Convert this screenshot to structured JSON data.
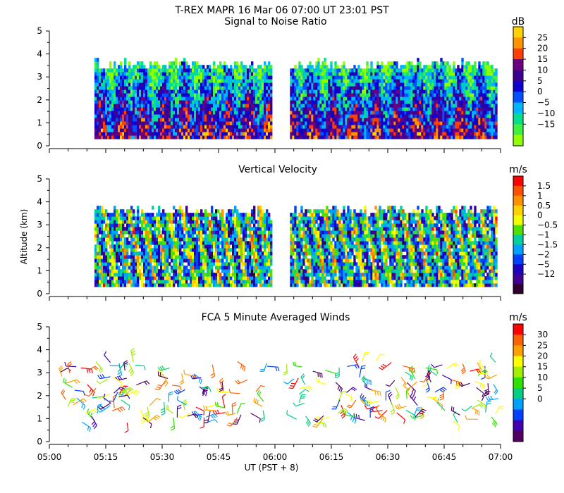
{
  "title": "T-REX   MAPR 16 Mar 06   07:00 UT   23:01   PST",
  "x_axis": {
    "label": "UT  (PST + 8)",
    "ticks": [
      "05:00",
      "05:15",
      "05:30",
      "05:45",
      "06:00",
      "06:15",
      "06:30",
      "06:45",
      "07:00"
    ],
    "range_minutes": [
      0,
      120
    ]
  },
  "chart_data": [
    {
      "type": "heatmap",
      "title": "Signal to Noise Ratio",
      "ylabel": "",
      "ylim": [
        0,
        5
      ],
      "yticks": [
        "0",
        "1",
        "2",
        "3",
        "4",
        "5"
      ],
      "colorbar": {
        "unit": "dB",
        "labels": [
          "25",
          "20",
          "15",
          "10",
          "5",
          "0",
          "−5",
          "−10",
          "−15"
        ],
        "colors": [
          "#ffd200",
          "#ff9400",
          "#ff4000",
          "#6a0080",
          "#3c0090",
          "#1000d0",
          "#0050ff",
          "#00b4ff",
          "#00e090",
          "#40f040",
          "#90ff00"
        ]
      },
      "data_gap_minutes": [
        59,
        64
      ],
      "data_coverage_minutes": [
        [
          12,
          59
        ],
        [
          64,
          119
        ]
      ],
      "data_altitude_km": [
        0.3,
        3.5
      ]
    },
    {
      "type": "heatmap",
      "title": "Vertical Velocity",
      "ylabel": "Altitude (km)",
      "ylim": [
        0,
        5
      ],
      "yticks": [
        "0",
        "1",
        "2",
        "3",
        "4",
        "5"
      ],
      "colorbar": {
        "unit": "m/s",
        "labels": [
          "1.5",
          "1",
          "0.5",
          "0",
          "−0.5",
          "−1",
          "−1.5",
          "−2",
          "−5",
          "−12"
        ],
        "colors": [
          "#ff0000",
          "#ff5000",
          "#ff9000",
          "#ffd000",
          "#f0ff00",
          "#50e000",
          "#00d0a0",
          "#00a0ff",
          "#0040ff",
          "#2000c0",
          "#400090",
          "#300030"
        ]
      },
      "data_gap_minutes": [
        59,
        64
      ],
      "data_coverage_minutes": [
        [
          12,
          59
        ],
        [
          64,
          119
        ]
      ],
      "data_altitude_km": [
        0.3,
        3.6
      ]
    },
    {
      "type": "scatter",
      "title": "FCA 5 Minute Averaged Winds",
      "ylabel": "",
      "ylim": [
        0,
        5
      ],
      "yticks": [
        "0",
        "1",
        "2",
        "3",
        "4",
        "5"
      ],
      "colorbar": {
        "unit": "m/s",
        "labels": [
          "30",
          "25",
          "20",
          "15",
          "10",
          "5",
          "0"
        ],
        "colors": [
          "#ff0000",
          "#ff6000",
          "#ffa000",
          "#ffff00",
          "#a0f000",
          "#30e000",
          "#00d080",
          "#00a0ff",
          "#0040ff",
          "#4000b0",
          "#500060"
        ]
      },
      "barb_altitude_range_km": [
        0.3,
        3.5
      ],
      "barb_time_range_minutes": [
        2,
        120
      ]
    }
  ]
}
